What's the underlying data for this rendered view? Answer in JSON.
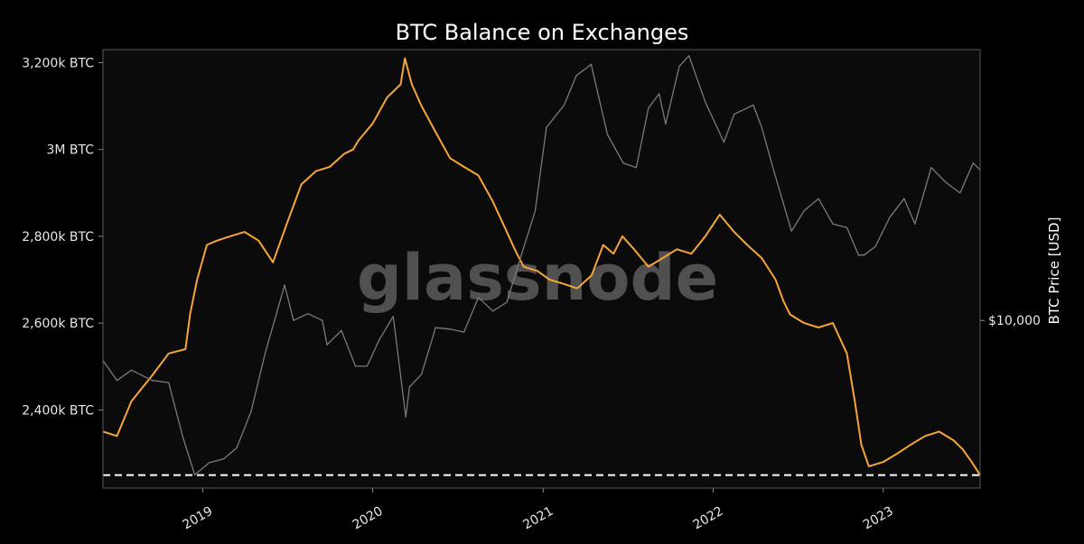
{
  "colors": {
    "background": "#000000",
    "plot_background": "#0b0b0b",
    "frame": "#5a5a5a",
    "balance": "#f7a538",
    "price": "#7a7a7a",
    "reference_line": "#ffffff",
    "watermark": "#8a8a8a"
  },
  "chart_data": {
    "type": "line",
    "title": "BTC Balance on Exchanges",
    "watermark": "glassnode",
    "grid": false,
    "legend": "none",
    "x_ticks": [
      "2019",
      "2020",
      "2021",
      "2022",
      "2023"
    ],
    "y_left": {
      "label": "",
      "ticks": [
        "3,200k BTC",
        "3M BTC",
        "2,800k BTC",
        "2,600k BTC",
        "2,400k BTC"
      ],
      "tick_values": [
        3200000,
        3000000,
        2800000,
        2600000,
        2400000
      ],
      "range": [
        2220000,
        3230000
      ]
    },
    "y_right": {
      "label": "BTC Price [USD]",
      "scale": "log",
      "ticks": [
        "$10,000"
      ],
      "tick_values": [
        10000
      ],
      "range": [
        3000,
        70000
      ]
    },
    "x_range": [
      "2018-06-01",
      "2023-07-28"
    ],
    "reference_line": {
      "axis": "left",
      "value": 2250000,
      "style": "dashed"
    },
    "series": [
      {
        "axis": "left",
        "x": [
          "2018-06-01",
          "2018-07-01",
          "2018-08-01",
          "2018-09-15",
          "2018-10-20",
          "2018-11-25",
          "2018-12-05",
          "2018-12-20",
          "2019-01-10",
          "2019-02-01",
          "2019-03-01",
          "2019-04-01",
          "2019-05-01",
          "2019-06-01",
          "2019-07-01",
          "2019-08-01",
          "2019-09-01",
          "2019-10-01",
          "2019-11-01",
          "2019-11-20",
          "2019-12-01",
          "2020-01-01",
          "2020-02-01",
          "2020-03-01",
          "2020-03-10",
          "2020-03-25",
          "2020-04-15",
          "2020-05-15",
          "2020-06-15",
          "2020-07-15",
          "2020-08-15",
          "2020-09-15",
          "2020-10-15",
          "2020-11-01",
          "2020-11-20",
          "2020-12-20",
          "2021-01-15",
          "2021-02-15",
          "2021-03-15",
          "2021-04-15",
          "2021-05-10",
          "2021-06-01",
          "2021-06-20",
          "2021-07-15",
          "2021-08-15",
          "2021-09-15",
          "2021-10-15",
          "2021-11-15",
          "2021-12-15",
          "2022-01-15",
          "2022-02-15",
          "2022-03-15",
          "2022-04-15",
          "2022-05-15",
          "2022-06-01",
          "2022-06-15",
          "2022-07-15",
          "2022-08-15",
          "2022-09-15",
          "2022-10-15",
          "2022-11-01",
          "2022-11-15",
          "2022-12-01",
          "2023-01-01",
          "2023-02-01",
          "2023-03-01",
          "2023-04-01",
          "2023-05-01",
          "2023-06-01",
          "2023-06-20",
          "2023-07-10",
          "2023-07-28"
        ],
        "y": [
          2350000,
          2340000,
          2420000,
          2480000,
          2530000,
          2540000,
          2620000,
          2700000,
          2780000,
          2790000,
          2800000,
          2810000,
          2790000,
          2740000,
          2830000,
          2920000,
          2950000,
          2960000,
          2990000,
          3000000,
          3020000,
          3060000,
          3120000,
          3150000,
          3210000,
          3150000,
          3100000,
          3040000,
          2980000,
          2960000,
          2940000,
          2880000,
          2810000,
          2770000,
          2730000,
          2720000,
          2700000,
          2690000,
          2680000,
          2710000,
          2780000,
          2760000,
          2800000,
          2770000,
          2730000,
          2750000,
          2770000,
          2760000,
          2800000,
          2850000,
          2810000,
          2780000,
          2750000,
          2700000,
          2650000,
          2620000,
          2600000,
          2590000,
          2600000,
          2530000,
          2420000,
          2320000,
          2270000,
          2280000,
          2300000,
          2320000,
          2340000,
          2350000,
          2330000,
          2310000,
          2280000,
          2250000
        ]
      },
      {
        "axis": "right",
        "x": [
          "2018-06-01",
          "2018-07-01",
          "2018-08-01",
          "2018-09-15",
          "2018-10-20",
          "2018-11-20",
          "2018-12-15",
          "2019-01-15",
          "2019-02-15",
          "2019-03-15",
          "2019-04-15",
          "2019-05-15",
          "2019-06-26",
          "2019-07-15",
          "2019-08-15",
          "2019-09-15",
          "2019-09-25",
          "2019-10-26",
          "2019-11-25",
          "2019-12-20",
          "2020-01-15",
          "2020-02-14",
          "2020-03-12",
          "2020-03-20",
          "2020-04-15",
          "2020-05-15",
          "2020-06-15",
          "2020-07-15",
          "2020-08-15",
          "2020-09-15",
          "2020-10-15",
          "2020-11-15",
          "2020-12-15",
          "2021-01-08",
          "2021-02-15",
          "2021-03-13",
          "2021-04-14",
          "2021-05-19",
          "2021-06-22",
          "2021-07-20",
          "2021-08-15",
          "2021-09-07",
          "2021-09-21",
          "2021-10-20",
          "2021-11-10",
          "2021-12-15",
          "2022-01-24",
          "2022-02-15",
          "2022-03-28",
          "2022-04-15",
          "2022-05-12",
          "2022-06-18",
          "2022-07-15",
          "2022-08-15",
          "2022-09-15",
          "2022-10-15",
          "2022-11-09",
          "2022-11-21",
          "2022-12-15",
          "2023-01-15",
          "2023-02-15",
          "2023-03-10",
          "2023-04-14",
          "2023-05-15",
          "2023-06-15",
          "2023-07-13",
          "2023-07-28"
        ],
        "y": [
          7500,
          6500,
          7000,
          6500,
          6400,
          4300,
          3300,
          3600,
          3700,
          4000,
          5200,
          7900,
          12900,
          10000,
          10500,
          10000,
          8400,
          9300,
          7200,
          7200,
          8700,
          10300,
          5000,
          6200,
          6800,
          9500,
          9400,
          9200,
          11800,
          10700,
          11400,
          16000,
          22000,
          40000,
          47000,
          58000,
          63000,
          38000,
          31000,
          30000,
          46000,
          51000,
          41000,
          62000,
          67000,
          48000,
          36000,
          44000,
          47000,
          40000,
          29000,
          19000,
          22000,
          24000,
          20000,
          19500,
          16000,
          16000,
          17000,
          21000,
          24000,
          20000,
          30000,
          27000,
          25000,
          31000,
          29500
        ]
      }
    ]
  }
}
